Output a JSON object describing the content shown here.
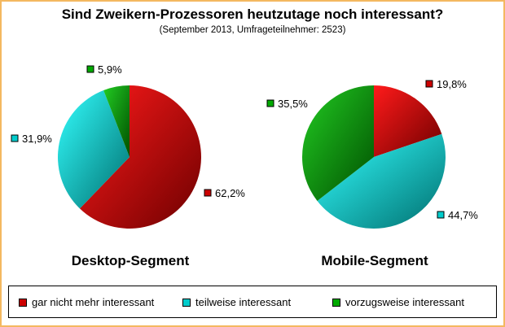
{
  "title": "Sind Zweikern-Prozessoren heutzutage noch interessant?",
  "subtitle": "(September 2013, Umfrageteilnehmer: 2523)",
  "colors": {
    "gar_nicht": "#cc0000",
    "teilweise": "#00cccc",
    "vorzugsweise": "#00aa00"
  },
  "legend": [
    {
      "key": "gar_nicht",
      "label": "gar nicht mehr interessant"
    },
    {
      "key": "teilweise",
      "label": "teilweise interessant"
    },
    {
      "key": "vorzugsweise",
      "label": "vorzugsweise interessant"
    }
  ],
  "chart_data": [
    {
      "type": "pie",
      "title": "Desktop-Segment",
      "slices": [
        {
          "key": "gar_nicht",
          "value": 62.2,
          "label": "62,2%"
        },
        {
          "key": "teilweise",
          "value": 31.9,
          "label": "31,9%"
        },
        {
          "key": "vorzugsweise",
          "value": 5.9,
          "label": "5,9%"
        }
      ]
    },
    {
      "type": "pie",
      "title": "Mobile-Segment",
      "slices": [
        {
          "key": "gar_nicht",
          "value": 19.8,
          "label": "19,8%"
        },
        {
          "key": "teilweise",
          "value": 44.7,
          "label": "44,7%"
        },
        {
          "key": "vorzugsweise",
          "value": 35.5,
          "label": "35,5%"
        }
      ]
    }
  ]
}
